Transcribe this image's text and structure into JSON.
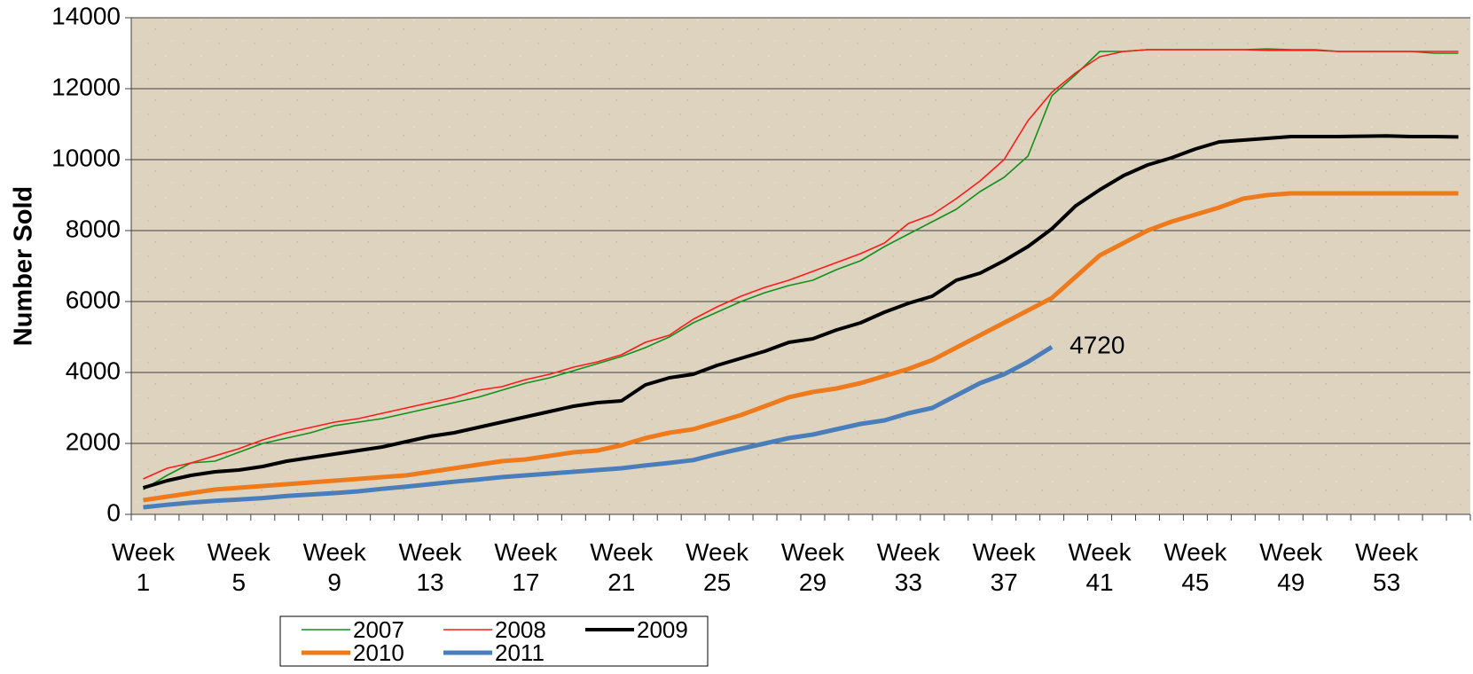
{
  "chart_data": {
    "type": "line",
    "y_label": "Number Sold",
    "categories": [
      "Week 1",
      null,
      null,
      null,
      "Week 5",
      null,
      null,
      null,
      "Week 9",
      null,
      null,
      null,
      "Week 13",
      null,
      null,
      null,
      "Week 17",
      null,
      null,
      null,
      "Week 21",
      null,
      null,
      null,
      "Week 25",
      null,
      null,
      null,
      "Week 29",
      null,
      null,
      null,
      "Week 33",
      null,
      null,
      null,
      "Week 37",
      null,
      null,
      null,
      "Week 41",
      null,
      null,
      null,
      "Week 45",
      null,
      null,
      null,
      "Week 49",
      null,
      null,
      null,
      "Week 53",
      null,
      null,
      null
    ],
    "series": [
      {
        "name": "2007",
        "color": "#12901a",
        "width": 1.6,
        "values": [
          700,
          1100,
          1450,
          1500,
          1750,
          2000,
          2150,
          2300,
          2500,
          2600,
          2700,
          2850,
          3000,
          3150,
          3300,
          3500,
          3700,
          3850,
          4050,
          4250,
          4450,
          4700,
          5000,
          5400,
          5700,
          6000,
          6250,
          6450,
          6600,
          6900,
          7150,
          7550,
          7900,
          8250,
          8600,
          9100,
          9500,
          10100,
          11800,
          12400,
          13050,
          13050,
          13100,
          13100,
          13100,
          13100,
          13100,
          13120,
          13100,
          13100,
          13050,
          13050,
          13050,
          13050,
          13000,
          13000
        ]
      },
      {
        "name": "2008",
        "color": "#ff1a1a",
        "width": 1.6,
        "values": [
          1000,
          1300,
          1450,
          1650,
          1850,
          2100,
          2300,
          2450,
          2600,
          2700,
          2850,
          3000,
          3150,
          3300,
          3500,
          3600,
          3800,
          3950,
          4150,
          4300,
          4500,
          4850,
          5050,
          5500,
          5850,
          6150,
          6400,
          6600,
          6850,
          7100,
          7350,
          7650,
          8200,
          8450,
          8900,
          9400,
          10000,
          11100,
          11900,
          12450,
          12900,
          13050,
          13100,
          13100,
          13100,
          13100,
          13100,
          13080,
          13080,
          13080,
          13050,
          13050,
          13050,
          13050,
          13050,
          13050
        ]
      },
      {
        "name": "2009",
        "color": "#000000",
        "width": 4,
        "values": [
          750,
          950,
          1100,
          1200,
          1250,
          1350,
          1500,
          1600,
          1700,
          1800,
          1900,
          2050,
          2200,
          2300,
          2450,
          2600,
          2750,
          2900,
          3050,
          3150,
          3200,
          3650,
          3850,
          3950,
          4200,
          4400,
          4600,
          4850,
          4950,
          5200,
          5400,
          5700,
          5950,
          6150,
          6600,
          6800,
          7150,
          7550,
          8050,
          8700,
          9150,
          9550,
          9850,
          10050,
          10300,
          10500,
          10550,
          10600,
          10650,
          10650,
          10650,
          10660,
          10670,
          10650,
          10650,
          10640
        ]
      },
      {
        "name": "2010",
        "color": "#ee7a1c",
        "width": 5,
        "values": [
          400,
          500,
          600,
          700,
          750,
          800,
          850,
          900,
          950,
          1000,
          1050,
          1100,
          1200,
          1300,
          1400,
          1500,
          1550,
          1650,
          1750,
          1800,
          1950,
          2150,
          2300,
          2400,
          2600,
          2800,
          3050,
          3300,
          3450,
          3550,
          3700,
          3900,
          4100,
          4350,
          4700,
          5050,
          5400,
          5750,
          6100,
          6700,
          7300,
          7650,
          8000,
          8250,
          8450,
          8650,
          8900,
          9000,
          9050,
          9050,
          9050,
          9050,
          9050,
          9050,
          9050,
          9050
        ]
      },
      {
        "name": "2011",
        "color": "#4a7ebb",
        "width": 5,
        "values": [
          200,
          270,
          330,
          380,
          420,
          460,
          520,
          560,
          600,
          650,
          720,
          780,
          850,
          920,
          980,
          1050,
          1100,
          1150,
          1200,
          1250,
          1300,
          1380,
          1450,
          1530,
          1700,
          1850,
          2000,
          2150,
          2250,
          2400,
          2550,
          2650,
          2850,
          3000,
          3350,
          3700,
          3950,
          4300,
          4720,
          null,
          null,
          null,
          null,
          null,
          null,
          null,
          null,
          null,
          null,
          null,
          null,
          null,
          null,
          null,
          null,
          null
        ],
        "labeled_point": 38
      }
    ],
    "ylim": [
      0,
      14000
    ],
    "yticks": [
      0,
      2000,
      4000,
      6000,
      8000,
      10000,
      12000,
      14000
    ],
    "grid": true
  }
}
